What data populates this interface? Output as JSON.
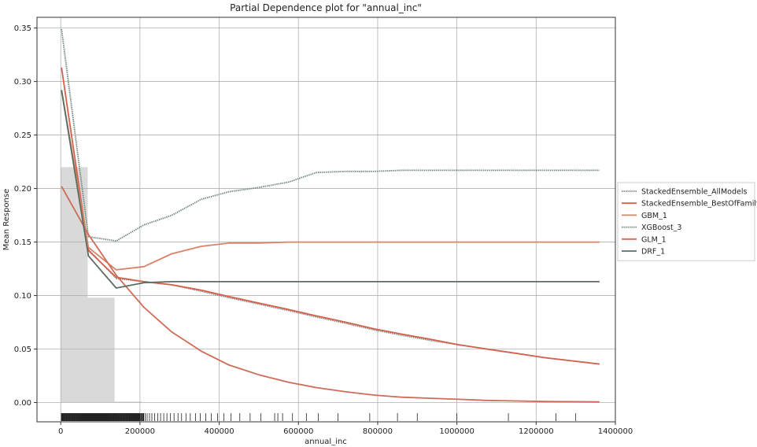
{
  "chart_data": {
    "type": "line",
    "title": "Partial Dependence plot for \"annual_inc\"",
    "xlabel": "annual_inc",
    "ylabel": "Mean Response",
    "xlim": [
      -60000,
      1400000
    ],
    "ylim": [
      -0.018,
      0.36
    ],
    "xticks": [
      0,
      200000,
      400000,
      600000,
      800000,
      1000000,
      1200000,
      1400000
    ],
    "yticks": [
      0.0,
      0.05,
      0.1,
      0.15,
      0.2,
      0.25,
      0.3,
      0.35
    ],
    "grid": true,
    "legend_position": "right",
    "histogram": {
      "color": "#d9d9d9",
      "bins": [
        {
          "x0": 0,
          "x1": 68000,
          "value": 0.22
        },
        {
          "x0": 68000,
          "x1": 136000,
          "value": 0.098
        },
        {
          "x0": 136000,
          "x1": 204000,
          "value": 0.001
        }
      ]
    },
    "rug": {
      "values": [
        3000,
        6000,
        10000,
        14000,
        18000,
        22000,
        26000,
        30000,
        34000,
        38000,
        42000,
        46000,
        50000,
        54000,
        58000,
        62000,
        66000,
        70000,
        74000,
        78000,
        82000,
        86000,
        90000,
        94000,
        98000,
        102000,
        106000,
        110000,
        114000,
        118000,
        122000,
        126000,
        130000,
        134000,
        138000,
        142000,
        146000,
        150000,
        154000,
        158000,
        162000,
        166000,
        170000,
        174000,
        178000,
        182000,
        186000,
        190000,
        194000,
        198000,
        203000,
        208000,
        213000,
        218000,
        224000,
        230000,
        237000,
        245000,
        252000,
        260000,
        268000,
        277000,
        286000,
        296000,
        305000,
        316000,
        327000,
        340000,
        352000,
        366000,
        380000,
        396000,
        412000,
        430000,
        452000,
        478000,
        505000,
        540000,
        548000,
        560000,
        585000,
        620000,
        650000,
        700000,
        780000,
        850000,
        900000,
        1000000,
        1130000,
        1250000,
        1300000
      ]
    },
    "x": [
      2000,
      70000,
      140000,
      210000,
      280000,
      355000,
      425000,
      500000,
      575000,
      645000,
      720000,
      790000,
      860000,
      935000,
      1005000,
      1075000,
      1150000,
      1220000,
      1290000,
      1360000
    ],
    "series": [
      {
        "name": "StackedEnsemble_AllModels",
        "color": "#7a8a7f",
        "style": "dotted",
        "values": [
          0.291,
          0.143,
          0.116,
          0.113,
          0.11,
          0.104,
          0.098,
          0.092,
          0.086,
          0.08,
          0.074,
          0.068,
          0.063,
          0.058,
          0.054,
          0.05,
          0.046,
          0.042,
          0.039,
          0.036
        ]
      },
      {
        "name": "StackedEnsemble_BestOfFamily",
        "color": "#d6604d",
        "style": "solid",
        "values": [
          0.313,
          0.142,
          0.117,
          0.113,
          0.11,
          0.105,
          0.099,
          0.093,
          0.087,
          0.081,
          0.075,
          0.069,
          0.064,
          0.059,
          0.054,
          0.05,
          0.046,
          0.042,
          0.039,
          0.036
        ]
      },
      {
        "name": "GBM_1",
        "color": "#d9826a",
        "style": "solid",
        "values": [
          0.292,
          0.145,
          0.124,
          0.127,
          0.139,
          0.146,
          0.149,
          0.149,
          0.15,
          0.15,
          0.15,
          0.15,
          0.15,
          0.15,
          0.15,
          0.15,
          0.15,
          0.15,
          0.15,
          0.15
        ]
      },
      {
        "name": "XGBoost_3",
        "color": "#6f8a78",
        "style": "dotted",
        "values": [
          0.349,
          0.155,
          0.151,
          0.166,
          0.175,
          0.19,
          0.197,
          0.201,
          0.206,
          0.215,
          0.216,
          0.216,
          0.217,
          0.217,
          0.217,
          0.217,
          0.217,
          0.217,
          0.217,
          0.217
        ]
      },
      {
        "name": "GLM_1",
        "color": "#cf6b58",
        "style": "solid",
        "values": [
          0.202,
          0.157,
          0.119,
          0.089,
          0.066,
          0.048,
          0.035,
          0.026,
          0.019,
          0.014,
          0.01,
          0.007,
          0.005,
          0.004,
          0.003,
          0.002,
          0.0015,
          0.001,
          0.0008,
          0.0006
        ]
      },
      {
        "name": "DRF_1",
        "color": "#5b6e62",
        "style": "solid",
        "values": [
          0.292,
          0.137,
          0.107,
          0.112,
          0.113,
          0.113,
          0.113,
          0.113,
          0.113,
          0.113,
          0.113,
          0.113,
          0.113,
          0.113,
          0.113,
          0.113,
          0.113,
          0.113,
          0.113,
          0.113
        ]
      }
    ]
  }
}
